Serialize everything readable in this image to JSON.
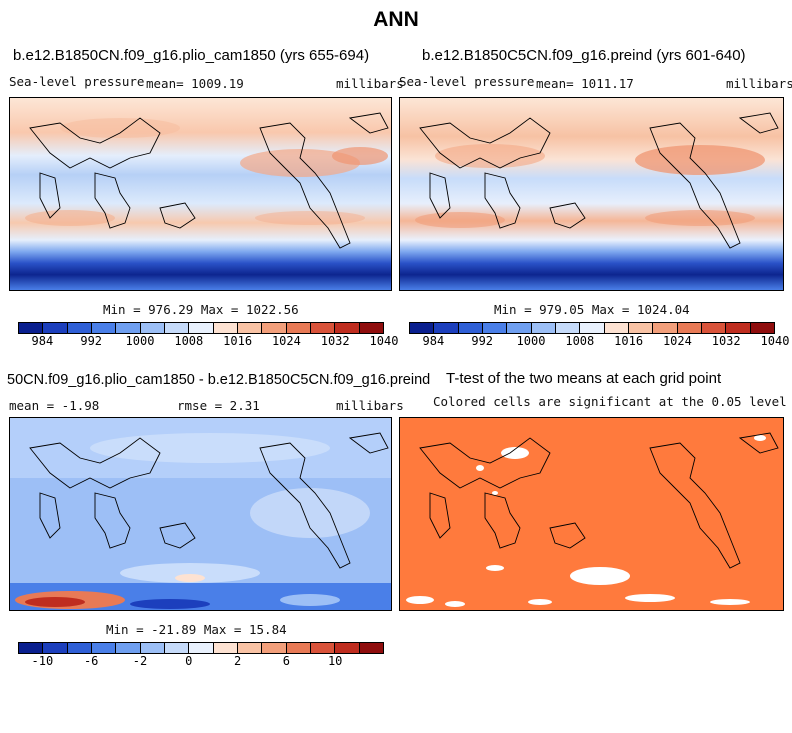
{
  "title": "ANN",
  "panels": {
    "p1": {
      "title": "b.e12.B1850CN.f09_g16.plio_cam1850 (yrs 655-694)",
      "variable": "Sea-level pressure",
      "mean_text": "mean= 1009.19",
      "units": "millibars",
      "minmax": "Min = 976.29 Max = 1022.56"
    },
    "p2": {
      "title": "b.e12.B1850C5CN.f09_g16.preind (yrs 601-640)",
      "variable": "Sea-level pressure",
      "mean_text": "mean= 1011.17",
      "units": "millibars",
      "minmax": "Min = 979.05 Max = 1024.04"
    },
    "p3": {
      "title": "50CN.f09_g16.plio_cam1850 - b.e12.B1850C5CN.f09_g16.preind",
      "mean_text": "mean =   -1.98",
      "rmse_text": "rmse =    2.31",
      "units": "millibars",
      "minmax": "Min = -21.89 Max =  15.84"
    },
    "p4": {
      "title": "T-test of the two means at each grid point",
      "subtitle": "Colored cells are significant at the 0.05 level"
    }
  },
  "colorbar_abs": {
    "colors": [
      "#0a1f8f",
      "#1c3fbd",
      "#2f5fd6",
      "#4a7fe8",
      "#6f9ff0",
      "#9cbff6",
      "#c6dbfa",
      "#e9f1fd",
      "#fde2d2",
      "#f9c3a5",
      "#f29f7b",
      "#e87a56",
      "#d9533a",
      "#bf2d1f",
      "#8f0d0d"
    ],
    "tick_labels": [
      "984",
      "992",
      "1000",
      "1008",
      "1016",
      "1024",
      "1032",
      "1040"
    ]
  },
  "colorbar_diff": {
    "colors": [
      "#0a1f8f",
      "#1c3fbd",
      "#2f5fd6",
      "#4a7fe8",
      "#6f9ff0",
      "#9cbff6",
      "#c6dbfa",
      "#e9f1fd",
      "#fde2d2",
      "#f9c3a5",
      "#f29f7b",
      "#e87a56",
      "#d9533a",
      "#bf2d1f",
      "#8f0d0d"
    ],
    "tick_labels": [
      "-10",
      "-6",
      "-2",
      "0",
      "2",
      "6",
      "10"
    ]
  },
  "colors": {
    "ttest_significant": "#ff7a3d",
    "ttest_not_significant": "#ffffff"
  }
}
